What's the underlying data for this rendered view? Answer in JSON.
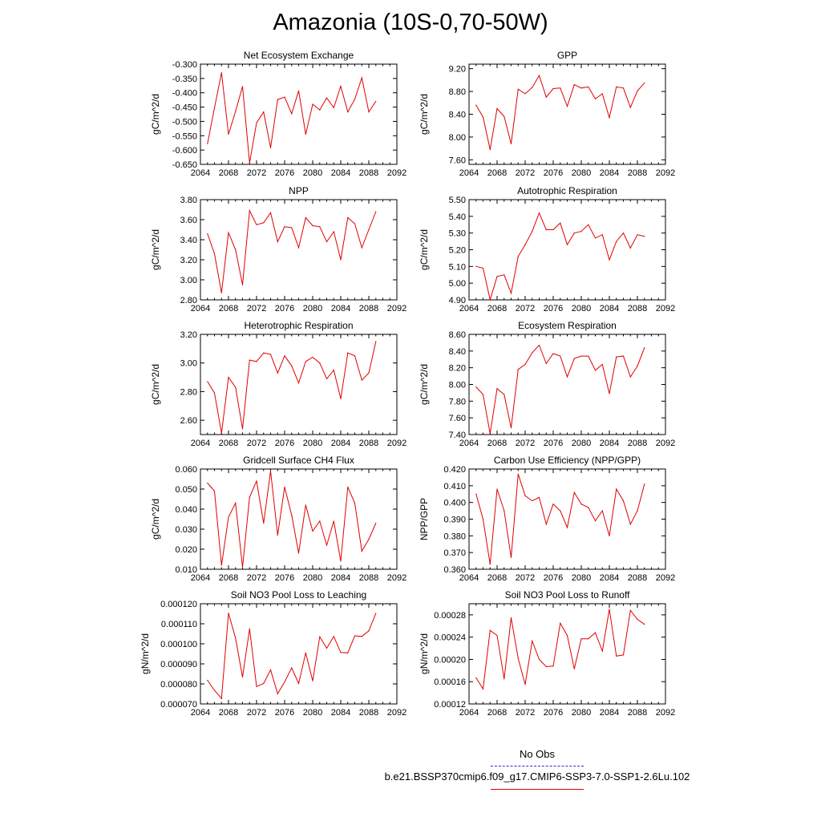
{
  "title": "Amazonia (10S-0,70-50W)",
  "legend": {
    "obs_label": "No Obs",
    "model_label": "b.e21.BSSP370cmip6.f09_g17.CMIP6-SSP3-7.0-SSP1-2.6Lu.102",
    "obs_color": "#2b2bd8",
    "model_color": "#e00000"
  },
  "chart_data": [
    {
      "type": "line",
      "title": "Net Ecosystem Exchange",
      "ylabel": "gC/m^2/d",
      "xlim": [
        2064,
        2092
      ],
      "xticks": [
        "2064",
        "2068",
        "2072",
        "2076",
        "2080",
        "2084",
        "2088",
        "2092"
      ],
      "ylim": [
        -0.65,
        -0.3
      ],
      "yticks": [
        "-0.300",
        "-0.350",
        "-0.400",
        "-0.450",
        "-0.500",
        "-0.550",
        "-0.600",
        "-0.650"
      ],
      "x": [
        2065,
        2066,
        2067,
        2068,
        2069,
        2070,
        2071,
        2072,
        2073,
        2074,
        2075,
        2076,
        2077,
        2078,
        2079,
        2080,
        2081,
        2082,
        2083,
        2084,
        2085,
        2086,
        2087,
        2088,
        2089
      ],
      "series": [
        {
          "values": [
            -0.578,
            -0.453,
            -0.33,
            -0.545,
            -0.465,
            -0.378,
            -0.645,
            -0.505,
            -0.467,
            -0.592,
            -0.424,
            -0.415,
            -0.473,
            -0.393,
            -0.545,
            -0.44,
            -0.46,
            -0.418,
            -0.452,
            -0.377,
            -0.467,
            -0.422,
            -0.348,
            -0.467,
            -0.43
          ]
        }
      ]
    },
    {
      "type": "line",
      "title": "GPP",
      "ylabel": "gC/m^2/d",
      "xlim": [
        2064,
        2092
      ],
      "xticks": [
        "2064",
        "2068",
        "2072",
        "2076",
        "2080",
        "2084",
        "2088",
        "2092"
      ],
      "ylim": [
        7.52,
        9.28
      ],
      "yticks": [
        "9.20",
        "8.80",
        "8.40",
        "8.00",
        "7.60"
      ],
      "x": [
        2065,
        2066,
        2067,
        2068,
        2069,
        2070,
        2071,
        2072,
        2073,
        2074,
        2075,
        2076,
        2077,
        2078,
        2079,
        2080,
        2081,
        2082,
        2083,
        2084,
        2085,
        2086,
        2087,
        2088,
        2089
      ],
      "series": [
        {
          "values": [
            8.56,
            8.35,
            7.78,
            8.5,
            8.36,
            7.88,
            8.84,
            8.76,
            8.87,
            9.08,
            8.7,
            8.85,
            8.86,
            8.54,
            8.92,
            8.86,
            8.88,
            8.67,
            8.76,
            8.34,
            8.88,
            8.86,
            8.52,
            8.81,
            8.95
          ]
        }
      ]
    },
    {
      "type": "line",
      "title": "NPP",
      "ylabel": "gC/m^2/d",
      "xlim": [
        2064,
        2092
      ],
      "xticks": [
        "2064",
        "2068",
        "2072",
        "2076",
        "2080",
        "2084",
        "2088",
        "2092"
      ],
      "ylim": [
        2.8,
        3.8
      ],
      "yticks": [
        "3.80",
        "3.60",
        "3.40",
        "3.20",
        "3.00",
        "2.80"
      ],
      "x": [
        2065,
        2066,
        2067,
        2068,
        2069,
        2070,
        2071,
        2072,
        2073,
        2074,
        2075,
        2076,
        2077,
        2078,
        2079,
        2080,
        2081,
        2082,
        2083,
        2084,
        2085,
        2086,
        2087,
        2088,
        2089
      ],
      "series": [
        {
          "values": [
            3.46,
            3.26,
            2.87,
            3.47,
            3.3,
            2.95,
            3.69,
            3.55,
            3.57,
            3.67,
            3.38,
            3.53,
            3.52,
            3.32,
            3.62,
            3.54,
            3.53,
            3.38,
            3.48,
            3.2,
            3.62,
            3.56,
            3.32,
            3.5,
            3.68
          ]
        }
      ]
    },
    {
      "type": "line",
      "title": "Autotrophic Respiration",
      "ylabel": "gC/m^2/d",
      "xlim": [
        2064,
        2092
      ],
      "xticks": [
        "2064",
        "2068",
        "2072",
        "2076",
        "2080",
        "2084",
        "2088",
        "2092"
      ],
      "ylim": [
        4.9,
        5.5
      ],
      "yticks": [
        "5.50",
        "5.40",
        "5.30",
        "5.20",
        "5.10",
        "5.00",
        "4.90"
      ],
      "x": [
        2065,
        2066,
        2067,
        2068,
        2069,
        2070,
        2071,
        2072,
        2073,
        2074,
        2075,
        2076,
        2077,
        2078,
        2079,
        2080,
        2081,
        2082,
        2083,
        2084,
        2085,
        2086,
        2087,
        2088,
        2089
      ],
      "series": [
        {
          "values": [
            5.1,
            5.09,
            4.9,
            5.04,
            5.05,
            4.94,
            5.16,
            5.23,
            5.31,
            5.42,
            5.32,
            5.32,
            5.36,
            5.23,
            5.3,
            5.31,
            5.35,
            5.27,
            5.29,
            5.14,
            5.25,
            5.3,
            5.21,
            5.29,
            5.28
          ]
        }
      ]
    },
    {
      "type": "line",
      "title": "Heterotrophic Respiration",
      "ylabel": "gC/m^2/d",
      "xlim": [
        2064,
        2092
      ],
      "xticks": [
        "2064",
        "2068",
        "2072",
        "2076",
        "2080",
        "2084",
        "2088",
        "2092"
      ],
      "ylim": [
        2.5,
        3.2
      ],
      "yticks": [
        "3.20",
        "3.00",
        "2.80",
        "2.60"
      ],
      "x": [
        2065,
        2066,
        2067,
        2068,
        2069,
        2070,
        2071,
        2072,
        2073,
        2074,
        2075,
        2076,
        2077,
        2078,
        2079,
        2080,
        2081,
        2082,
        2083,
        2084,
        2085,
        2086,
        2087,
        2088,
        2089
      ],
      "series": [
        {
          "values": [
            2.87,
            2.79,
            2.51,
            2.9,
            2.83,
            2.54,
            3.02,
            3.01,
            3.07,
            3.06,
            2.93,
            3.05,
            2.98,
            2.86,
            3.01,
            3.04,
            3.0,
            2.89,
            2.95,
            2.75,
            3.07,
            3.05,
            2.88,
            2.93,
            3.15
          ]
        }
      ]
    },
    {
      "type": "line",
      "title": "Ecosystem Respiration",
      "ylabel": "gC/m^2/d",
      "xlim": [
        2064,
        2092
      ],
      "xticks": [
        "2064",
        "2068",
        "2072",
        "2076",
        "2080",
        "2084",
        "2088",
        "2092"
      ],
      "ylim": [
        7.4,
        8.6
      ],
      "yticks": [
        "8.60",
        "8.40",
        "8.20",
        "8.00",
        "7.80",
        "7.60",
        "7.40"
      ],
      "x": [
        2065,
        2066,
        2067,
        2068,
        2069,
        2070,
        2071,
        2072,
        2073,
        2074,
        2075,
        2076,
        2077,
        2078,
        2079,
        2080,
        2081,
        2082,
        2083,
        2084,
        2085,
        2086,
        2087,
        2088,
        2089
      ],
      "series": [
        {
          "values": [
            7.97,
            7.88,
            7.41,
            7.95,
            7.88,
            7.48,
            8.18,
            8.24,
            8.38,
            8.47,
            8.25,
            8.37,
            8.34,
            8.09,
            8.31,
            8.34,
            8.34,
            8.17,
            8.24,
            7.89,
            8.33,
            8.34,
            8.09,
            8.22,
            8.44
          ]
        }
      ]
    },
    {
      "type": "line",
      "title": "Gridcell Surface CH4 Flux",
      "ylabel": "gC/m^2/d",
      "xlim": [
        2064,
        2092
      ],
      "xticks": [
        "2064",
        "2068",
        "2072",
        "2076",
        "2080",
        "2084",
        "2088",
        "2092"
      ],
      "ylim": [
        0.01,
        0.06
      ],
      "yticks": [
        "0.060",
        "0.050",
        "0.040",
        "0.030",
        "0.020",
        "0.010"
      ],
      "x": [
        2065,
        2066,
        2067,
        2068,
        2069,
        2070,
        2071,
        2072,
        2073,
        2074,
        2075,
        2076,
        2077,
        2078,
        2079,
        2080,
        2081,
        2082,
        2083,
        2084,
        2085,
        2086,
        2087,
        2088,
        2089
      ],
      "series": [
        {
          "values": [
            0.053,
            0.049,
            0.012,
            0.036,
            0.043,
            0.011,
            0.046,
            0.054,
            0.033,
            0.059,
            0.027,
            0.051,
            0.037,
            0.018,
            0.042,
            0.029,
            0.034,
            0.022,
            0.034,
            0.014,
            0.051,
            0.043,
            0.019,
            0.025,
            0.033
          ]
        }
      ]
    },
    {
      "type": "line",
      "title": "Carbon Use Efficiency (NPP/GPP)",
      "ylabel": "NPP/GPP",
      "xlim": [
        2064,
        2092
      ],
      "xticks": [
        "2064",
        "2068",
        "2072",
        "2076",
        "2080",
        "2084",
        "2088",
        "2092"
      ],
      "ylim": [
        0.36,
        0.42
      ],
      "yticks": [
        "0.420",
        "0.410",
        "0.400",
        "0.390",
        "0.380",
        "0.370",
        "0.360"
      ],
      "x": [
        2065,
        2066,
        2067,
        2068,
        2069,
        2070,
        2071,
        2072,
        2073,
        2074,
        2075,
        2076,
        2077,
        2078,
        2079,
        2080,
        2081,
        2082,
        2083,
        2084,
        2085,
        2086,
        2087,
        2088,
        2089
      ],
      "series": [
        {
          "values": [
            0.405,
            0.39,
            0.363,
            0.408,
            0.395,
            0.367,
            0.417,
            0.404,
            0.401,
            0.403,
            0.387,
            0.399,
            0.395,
            0.385,
            0.406,
            0.399,
            0.397,
            0.389,
            0.395,
            0.38,
            0.408,
            0.401,
            0.387,
            0.395,
            0.411
          ]
        }
      ]
    },
    {
      "type": "line",
      "title": "Soil NO3 Pool Loss to Leaching",
      "ylabel": "gN/m^2/d",
      "xlim": [
        2064,
        2092
      ],
      "xticks": [
        "2064",
        "2068",
        "2072",
        "2076",
        "2080",
        "2084",
        "2088",
        "2092"
      ],
      "ylim": [
        7e-05,
        0.00012
      ],
      "yticks": [
        "0.000120",
        "0.000110",
        "0.000100",
        "0.000090",
        "0.000080",
        "0.000070"
      ],
      "x": [
        2065,
        2066,
        2067,
        2068,
        2069,
        2070,
        2071,
        2072,
        2073,
        2074,
        2075,
        2076,
        2077,
        2078,
        2079,
        2080,
        2081,
        2082,
        2083,
        2084,
        2085,
        2086,
        2087,
        2088,
        2089
      ],
      "series": [
        {
          "values": [
            8.18e-05,
            7.68e-05,
            7.27e-05,
            0.0001153,
            0.0001028,
            8.34e-05,
            0.0001075,
            7.87e-05,
            8.02e-05,
            8.7e-05,
            7.51e-05,
            8.1e-05,
            8.8e-05,
            8.02e-05,
            9.55e-05,
            8.15e-05,
            0.0001035,
            9.78e-05,
            0.0001037,
            9.57e-05,
            9.55e-05,
            0.000104,
            0.0001037,
            0.0001065,
            0.0001152
          ]
        }
      ]
    },
    {
      "type": "line",
      "title": "Soil NO3 Pool Loss to Runoff",
      "ylabel": "gN/m^2/d",
      "xlim": [
        2064,
        2092
      ],
      "xticks": [
        "2064",
        "2068",
        "2072",
        "2076",
        "2080",
        "2084",
        "2088",
        "2092"
      ],
      "ylim": [
        0.00012,
        0.0003
      ],
      "yticks": [
        "0.00028",
        "0.00024",
        "0.00020",
        "0.00016",
        "0.00012"
      ],
      "x": [
        2065,
        2066,
        2067,
        2068,
        2069,
        2070,
        2071,
        2072,
        2073,
        2074,
        2075,
        2076,
        2077,
        2078,
        2079,
        2080,
        2081,
        2082,
        2083,
        2084,
        2085,
        2086,
        2087,
        2088,
        2089
      ],
      "series": [
        {
          "values": [
            0.000167,
            0.000147,
            0.000252,
            0.000243,
            0.000165,
            0.000275,
            0.000202,
            0.000155,
            0.000233,
            0.0002,
            0.000187,
            0.000188,
            0.000265,
            0.000243,
            0.000183,
            0.000237,
            0.000237,
            0.000248,
            0.000215,
            0.00029,
            0.000206,
            0.000208,
            0.000288,
            0.000272,
            0.000263
          ]
        }
      ]
    }
  ]
}
